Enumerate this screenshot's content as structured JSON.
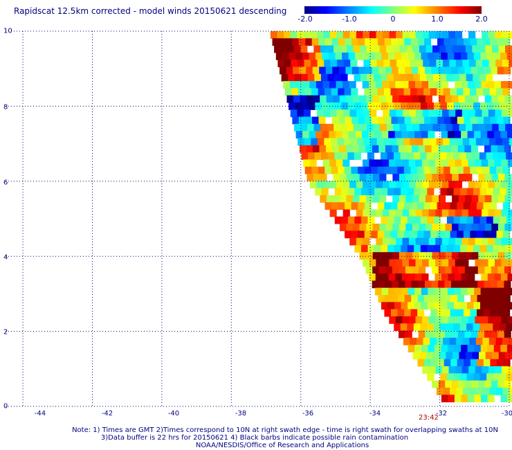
{
  "header": {
    "title": "Rapidscat 12.5km corrected - model winds 20150621 descending"
  },
  "colorbar": {
    "labels": [
      "-2.0",
      "-1.0",
      "0",
      "1.0",
      "2.0"
    ],
    "values": [
      -2.0,
      -1.0,
      0,
      1.0,
      2.0
    ],
    "range": [
      -2.0,
      2.0
    ]
  },
  "map": {
    "lat_labels": [
      "10",
      "8",
      "6",
      "4",
      "2",
      "0"
    ],
    "lat_values": [
      10,
      8,
      6,
      4,
      2,
      0
    ],
    "lon_labels": [
      "-44",
      "-42",
      "-40",
      "-38",
      "-36",
      "-34",
      "-32",
      "-30"
    ],
    "lon_values": [
      -44,
      -42,
      -40,
      -38,
      -36,
      -34,
      -32,
      -30
    ],
    "lon_range": [
      -44.5,
      -30
    ],
    "lat_range": [
      0,
      10
    ],
    "time_label": "23:42",
    "swath_edge_points": [
      [
        -36.9,
        10
      ],
      [
        -35.8,
        6
      ],
      [
        -34.3,
        4
      ],
      [
        -33.6,
        2.5
      ],
      [
        -31.8,
        0
      ]
    ]
  },
  "notes": {
    "line1": "Note: 1) Times are GMT 2)Times correspond to 10N at right swath edge - time is right swath for overlapping swaths at 10N",
    "line2": "3)Data buffer is 22 hrs for 20150621 4) Black barbs indicate possible rain contamination",
    "line3": "NOAA/NESDIS/Office of Research and Applications"
  },
  "colors": {
    "axis_text": "#000080",
    "time_text": "#aa0000",
    "grid": "#000066"
  }
}
